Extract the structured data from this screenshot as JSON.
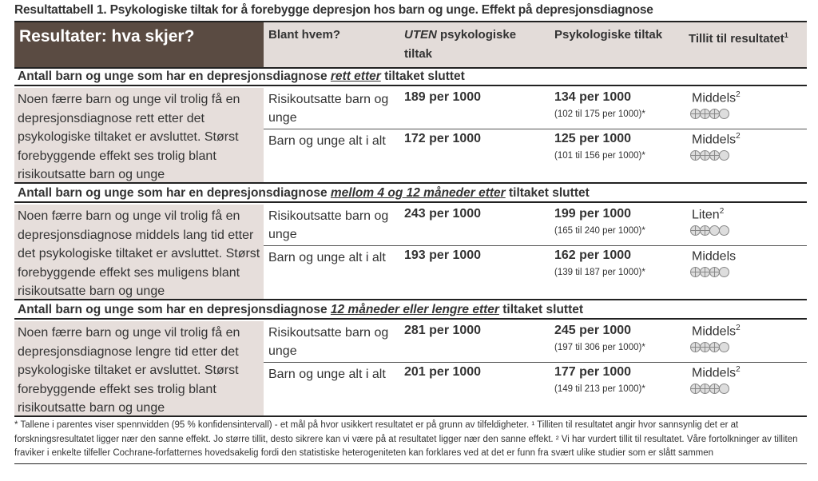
{
  "title": "Resultattabell 1. Psykologiske tiltak for å forebygge depresjon hos barn og unge. Effekt på depresjonsdiagnose",
  "header": {
    "results": "Resultater: hva skjer?",
    "among": "Blant hvem?",
    "without_em": "UTEN",
    "without_rest": " psykologiske tiltak",
    "with": "Psykologiske tiltak",
    "confidence": "Tillit til resultatet",
    "confidence_sup": "1"
  },
  "sections": [
    {
      "pre": "Antall barn og unge som har en depresjonsdiagnose ",
      "em": "rett etter",
      "post": " tiltaket sluttet",
      "text": "Noen færre barn og unge vil trolig få en depresjonsdiagnose rett etter det psykologiske tiltaket er avsluttet. Størst forebyggende effekt ses trolig blant risikoutsatte barn og unge",
      "rows": [
        {
          "who": "Risikoutsatte barn og unge",
          "without": "189 per 1000",
          "with": "134 per 1000",
          "ci": "(102 til 175 per 1000)*",
          "conf": "Middels",
          "sup": "2",
          "level": 3
        },
        {
          "who": "Barn og unge alt i alt",
          "without": "172 per 1000",
          "with": "125 per 1000",
          "ci": "(101 til 156 per 1000)*",
          "conf": "Middels",
          "sup": "2",
          "level": 3
        }
      ]
    },
    {
      "pre": "Antall barn og unge som har en depresjonsdiagnose ",
      "em": "mellom 4 og 12 måneder etter",
      "post": " tiltaket sluttet",
      "text": "Noen færre barn og unge vil trolig få en depresjonsdiagnose middels lang tid etter det psykologiske tiltaket er avsluttet. Størst forebyggende effekt ses muligens blant risikoutsatte barn og unge",
      "rows": [
        {
          "who": "Risikoutsatte barn og unge",
          "without": "243 per 1000",
          "with": "199 per 1000",
          "ci": "(165 til 240 per 1000)*",
          "conf": "Liten",
          "sup": "2",
          "level": 2
        },
        {
          "who": "Barn og unge alt i alt",
          "without": "193 per 1000",
          "with": "162 per 1000",
          "ci": "(139 til 187 per 1000)*",
          "conf": "Middels",
          "sup": "",
          "level": 3
        }
      ]
    },
    {
      "pre": "Antall barn og unge som har en depresjonsdiagnose ",
      "em": "12 måneder eller lengre etter",
      "post": " tiltaket sluttet",
      "text": "Noen færre barn og unge vil trolig få en depresjonsdiagnose lengre tid etter det psykologiske tiltaket er avsluttet. Størst forebyggende effekt ses trolig blant risikoutsatte barn og unge",
      "rows": [
        {
          "who": "Risikoutsatte barn og unge",
          "without": "281 per 1000",
          "with": "245 per 1000",
          "ci": "(197 til 306 per 1000)*",
          "conf": "Middels",
          "sup": "2",
          "level": 3
        },
        {
          "who": "Barn og unge alt i alt",
          "without": "201 per 1000",
          "with": "177 per 1000",
          "ci": "(149 til 213 per 1000)*",
          "conf": "Middels",
          "sup": "2",
          "level": 3
        }
      ]
    }
  ],
  "footnote": "* Tallene i parentes viser spennvidden (95 % konfidensintervall) - et mål på hvor usikkert resultatet er på grunn av tilfeldigheter. ¹ Tilliten til resultatet angir hvor sannsynlig det er at forskningsresultatet ligger nær den sanne effekt. Jo større tillit, desto sikrere kan vi være på at resultatet ligger nær den sanne effekt. ² Vi har vurdert tillit til resultatet. Våre fortolkninger av tilliten fraviker i enkelte tilfeller Cochrane-forfatternes hovedsakelig fordi den statistiske heterogeniteten kan forklares ved at det er funn fra svært ulike studier som er slått sammen"
}
